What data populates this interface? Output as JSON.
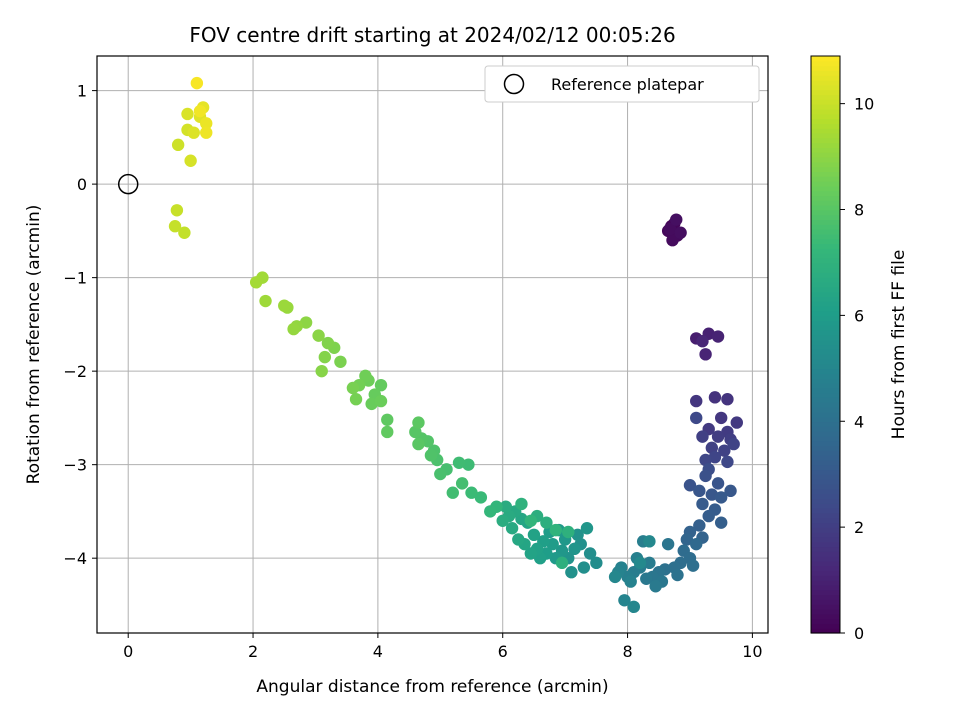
{
  "chart_data": {
    "type": "scatter",
    "title": "FOV centre drift starting at 2024/02/12 00:05:26",
    "xlabel": "Angular distance from reference (arcmin)",
    "ylabel": "Rotation from reference (arcmin)",
    "xlim": [
      -0.5,
      10.25
    ],
    "ylim": [
      -4.8,
      1.37
    ],
    "x_ticks": [
      0,
      2,
      4,
      6,
      8,
      10
    ],
    "y_ticks": [
      1,
      0,
      -1,
      -2,
      -3,
      -4
    ],
    "grid": true,
    "legend": {
      "position": "top-right",
      "entries": [
        "Reference platepar"
      ]
    },
    "reference_point": {
      "x": 0,
      "y": 0
    },
    "colorbar": {
      "label": "Hours from first FF file",
      "colormap": "viridis",
      "range": [
        0,
        10.9
      ],
      "ticks": [
        0,
        2,
        4,
        6,
        8,
        10
      ]
    },
    "points": [
      [
        8.7,
        -0.45,
        0.1
      ],
      [
        8.75,
        -0.42,
        0.15
      ],
      [
        8.65,
        -0.5,
        0.2
      ],
      [
        8.8,
        -0.55,
        0.25
      ],
      [
        8.72,
        -0.6,
        0.3
      ],
      [
        8.68,
        -0.48,
        0.35
      ],
      [
        8.85,
        -0.52,
        0.4
      ],
      [
        8.78,
        -0.38,
        0.45
      ],
      [
        9.1,
        -1.65,
        0.9
      ],
      [
        9.3,
        -1.6,
        1.0
      ],
      [
        9.45,
        -1.63,
        1.05
      ],
      [
        9.25,
        -1.82,
        1.1
      ],
      [
        9.2,
        -1.68,
        1.15
      ],
      [
        9.4,
        -2.28,
        1.6
      ],
      [
        9.6,
        -2.3,
        1.65
      ],
      [
        9.1,
        -2.32,
        1.7
      ],
      [
        9.5,
        -2.5,
        1.75
      ],
      [
        9.75,
        -2.55,
        1.8
      ],
      [
        9.3,
        -2.62,
        1.85
      ],
      [
        9.6,
        -2.65,
        1.9
      ],
      [
        9.45,
        -2.7,
        1.95
      ],
      [
        9.65,
        -2.73,
        2.0
      ],
      [
        9.2,
        -2.7,
        2.05
      ],
      [
        9.35,
        -2.82,
        2.1
      ],
      [
        9.55,
        -2.85,
        2.15
      ],
      [
        9.7,
        -2.78,
        2.2
      ],
      [
        9.4,
        -2.92,
        2.25
      ],
      [
        9.25,
        -2.95,
        2.3
      ],
      [
        9.6,
        -2.97,
        2.35
      ],
      [
        9.1,
        -2.5,
        2.4
      ],
      [
        9.3,
        -3.05,
        2.6
      ],
      [
        9.25,
        -3.12,
        2.7
      ],
      [
        9.0,
        -3.22,
        2.8
      ],
      [
        9.45,
        -3.2,
        2.85
      ],
      [
        9.15,
        -3.28,
        2.9
      ],
      [
        9.35,
        -3.32,
        2.95
      ],
      [
        9.65,
        -3.28,
        3.0
      ],
      [
        9.5,
        -3.35,
        3.05
      ],
      [
        9.2,
        -3.42,
        3.1
      ],
      [
        9.4,
        -3.48,
        3.15
      ],
      [
        9.3,
        -3.55,
        3.2
      ],
      [
        9.5,
        -3.62,
        3.25
      ],
      [
        9.15,
        -3.65,
        3.3
      ],
      [
        9.0,
        -3.72,
        3.4
      ],
      [
        9.2,
        -3.78,
        3.45
      ],
      [
        8.95,
        -3.8,
        3.5
      ],
      [
        9.1,
        -3.85,
        3.7
      ],
      [
        8.9,
        -3.92,
        3.8
      ],
      [
        9.0,
        -4.0,
        3.85
      ],
      [
        8.85,
        -4.05,
        3.9
      ],
      [
        9.05,
        -4.08,
        3.95
      ],
      [
        8.75,
        -4.1,
        4.0
      ],
      [
        8.6,
        -4.12,
        4.05
      ],
      [
        8.8,
        -4.18,
        4.1
      ],
      [
        8.5,
        -4.15,
        4.2
      ],
      [
        8.65,
        -3.85,
        4.25
      ],
      [
        8.4,
        -4.2,
        4.3
      ],
      [
        8.55,
        -4.25,
        4.35
      ],
      [
        8.3,
        -4.22,
        4.4
      ],
      [
        8.45,
        -4.3,
        4.45
      ],
      [
        8.2,
        -4.1,
        4.5
      ],
      [
        8.35,
        -4.05,
        4.55
      ],
      [
        8.1,
        -4.15,
        4.6
      ],
      [
        8.25,
        -3.82,
        4.65
      ],
      [
        8.0,
        -4.2,
        4.7
      ],
      [
        8.15,
        -4.0,
        4.75
      ],
      [
        7.9,
        -4.1,
        4.8
      ],
      [
        8.05,
        -4.25,
        4.85
      ],
      [
        7.85,
        -4.15,
        4.9
      ],
      [
        7.95,
        -4.45,
        4.95
      ],
      [
        8.1,
        -4.52,
        5.0
      ],
      [
        7.8,
        -4.2,
        5.05
      ],
      [
        8.35,
        -3.82,
        5.1
      ],
      [
        8.2,
        -4.05,
        5.15
      ],
      [
        7.5,
        -4.05,
        5.3
      ],
      [
        7.4,
        -3.95,
        5.35
      ],
      [
        7.3,
        -4.1,
        5.4
      ],
      [
        7.25,
        -3.85,
        5.45
      ],
      [
        7.1,
        -4.15,
        5.5
      ],
      [
        7.2,
        -3.75,
        5.55
      ],
      [
        7.05,
        -4.0,
        5.6
      ],
      [
        7.15,
        -3.9,
        5.65
      ],
      [
        7.35,
        -3.68,
        5.7
      ],
      [
        6.95,
        -3.92,
        5.75
      ],
      [
        7.0,
        -3.8,
        5.8
      ],
      [
        6.9,
        -3.7,
        5.85
      ],
      [
        6.85,
        -4.0,
        5.9
      ],
      [
        6.8,
        -3.85,
        5.95
      ],
      [
        6.75,
        -3.72,
        6.0
      ],
      [
        6.7,
        -3.95,
        6.05
      ],
      [
        6.65,
        -3.82,
        6.1
      ],
      [
        6.6,
        -4.0,
        6.15
      ],
      [
        6.55,
        -3.9,
        6.2
      ],
      [
        6.5,
        -3.75,
        6.25
      ],
      [
        6.45,
        -3.95,
        6.3
      ],
      [
        6.4,
        -3.62,
        6.35
      ],
      [
        6.35,
        -3.85,
        6.4
      ],
      [
        6.3,
        -3.58,
        6.45
      ],
      [
        6.25,
        -3.8,
        6.5
      ],
      [
        6.2,
        -3.5,
        6.55
      ],
      [
        6.15,
        -3.68,
        6.6
      ],
      [
        6.1,
        -3.55,
        6.65
      ],
      [
        6.05,
        -3.45,
        6.7
      ],
      [
        6.0,
        -3.6,
        6.75
      ],
      [
        6.55,
        -3.55,
        6.8
      ],
      [
        6.7,
        -3.62,
        6.85
      ],
      [
        6.95,
        -4.05,
        6.9
      ],
      [
        7.05,
        -3.72,
        6.95
      ],
      [
        6.3,
        -3.42,
        7.0
      ],
      [
        6.85,
        -3.7,
        7.05
      ],
      [
        6.45,
        -3.6,
        7.1
      ],
      [
        5.9,
        -3.45,
        7.15
      ],
      [
        5.8,
        -3.5,
        7.2
      ],
      [
        5.65,
        -3.35,
        7.35
      ],
      [
        5.5,
        -3.3,
        7.4
      ],
      [
        5.45,
        -3.0,
        7.45
      ],
      [
        5.3,
        -2.98,
        7.5
      ],
      [
        5.2,
        -3.3,
        7.55
      ],
      [
        5.35,
        -3.2,
        7.6
      ],
      [
        5.1,
        -3.05,
        7.65
      ],
      [
        5.0,
        -3.1,
        7.7
      ],
      [
        4.95,
        -2.95,
        7.75
      ],
      [
        4.9,
        -2.85,
        7.8
      ],
      [
        4.85,
        -2.9,
        7.85
      ],
      [
        4.8,
        -2.75,
        7.9
      ],
      [
        4.7,
        -2.72,
        7.95
      ],
      [
        4.6,
        -2.65,
        8.0
      ],
      [
        4.65,
        -2.78,
        8.05
      ],
      [
        4.65,
        -2.55,
        8.1
      ],
      [
        4.15,
        -2.52,
        8.15
      ],
      [
        4.15,
        -2.65,
        8.2
      ],
      [
        4.05,
        -2.15,
        8.25
      ],
      [
        3.95,
        -2.25,
        8.3
      ],
      [
        3.9,
        -2.35,
        8.35
      ],
      [
        4.05,
        -2.32,
        8.4
      ],
      [
        3.85,
        -2.1,
        8.45
      ],
      [
        3.8,
        -2.05,
        8.5
      ],
      [
        3.7,
        -2.15,
        8.55
      ],
      [
        3.65,
        -2.3,
        8.6
      ],
      [
        3.6,
        -2.18,
        8.65
      ],
      [
        3.4,
        -1.9,
        8.7
      ],
      [
        3.3,
        -1.75,
        8.75
      ],
      [
        3.2,
        -1.7,
        8.8
      ],
      [
        3.15,
        -1.85,
        8.85
      ],
      [
        3.1,
        -2.0,
        8.9
      ],
      [
        3.05,
        -1.62,
        8.95
      ],
      [
        2.85,
        -1.48,
        9.0
      ],
      [
        2.7,
        -1.52,
        9.1
      ],
      [
        2.65,
        -1.55,
        9.15
      ],
      [
        2.55,
        -1.32,
        9.2
      ],
      [
        2.5,
        -1.3,
        9.25
      ],
      [
        2.2,
        -1.25,
        9.3
      ],
      [
        2.15,
        -1.0,
        9.35
      ],
      [
        2.05,
        -1.05,
        9.4
      ],
      [
        0.9,
        -0.52,
        9.9
      ],
      [
        0.75,
        -0.45,
        9.95
      ],
      [
        0.78,
        -0.28,
        10.0
      ],
      [
        0.8,
        0.42,
        10.1
      ],
      [
        0.95,
        0.58,
        10.2
      ],
      [
        1.0,
        0.25,
        10.25
      ],
      [
        0.95,
        0.75,
        10.3
      ],
      [
        1.05,
        0.55,
        10.35
      ],
      [
        1.15,
        0.72,
        10.4
      ],
      [
        1.2,
        0.82,
        10.5
      ],
      [
        1.25,
        0.65,
        10.6
      ],
      [
        1.25,
        0.55,
        10.65
      ],
      [
        1.15,
        0.78,
        10.7
      ],
      [
        1.1,
        1.08,
        10.8
      ]
    ]
  }
}
